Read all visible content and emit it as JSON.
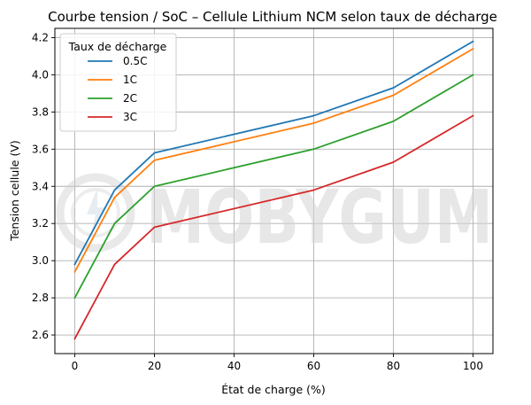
{
  "chart_data": {
    "type": "line",
    "title": "Courbe tension / SoC – Cellule Lithium NCM selon taux de décharge",
    "xlabel": "État de charge (%)",
    "ylabel": "Tension cellule (V)",
    "x": [
      0,
      10,
      20,
      60,
      80,
      100
    ],
    "xlim": [
      -5,
      105
    ],
    "ylim": [
      2.5,
      4.25
    ],
    "xticks": [
      0,
      20,
      40,
      60,
      80,
      100
    ],
    "yticks": [
      2.6,
      2.8,
      3.0,
      3.2,
      3.4,
      3.6,
      3.8,
      4.0,
      4.2
    ],
    "ytick_labels": [
      "2.6",
      "2.8",
      "3.0",
      "3.2",
      "3.4",
      "3.6",
      "3.8",
      "4.0",
      "4.2"
    ],
    "grid": true,
    "legend": {
      "title": "Taux de décharge",
      "placement": "top-left"
    },
    "series": [
      {
        "name": "0.5C",
        "color": "#1f77b4",
        "values": [
          2.98,
          3.38,
          3.58,
          3.78,
          3.93,
          4.18
        ]
      },
      {
        "name": "1C",
        "color": "#ff7f0e",
        "values": [
          2.94,
          3.34,
          3.54,
          3.74,
          3.89,
          4.14
        ]
      },
      {
        "name": "2C",
        "color": "#2ca02c",
        "values": [
          2.8,
          3.2,
          3.4,
          3.6,
          3.75,
          4.0
        ]
      },
      {
        "name": "3C",
        "color": "#d62728",
        "values": [
          2.58,
          2.98,
          3.18,
          3.38,
          3.53,
          3.78
        ]
      }
    ]
  },
  "watermark": {
    "text": "MOBYGUM",
    "icon": "gear-bolt-logo"
  }
}
